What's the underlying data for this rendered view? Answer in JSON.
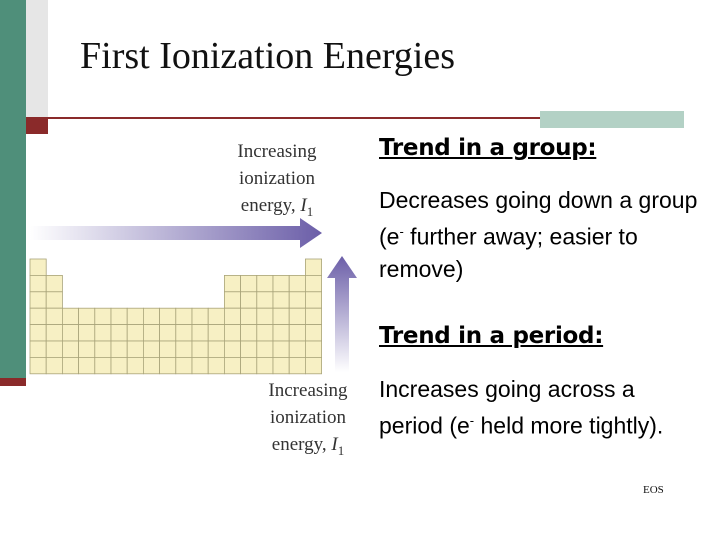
{
  "slide": {
    "title": "First Ionization Energies",
    "footer_tag": "EOS"
  },
  "figure": {
    "top_label": [
      "Increasing",
      "ionization",
      "energy,"
    ],
    "side_label": [
      "Increasing",
      "ionization",
      "energy,"
    ],
    "symbol": "I",
    "subscript": "1",
    "colors": {
      "cell_fill": "#f7f0c4",
      "cell_stroke": "#a9a47a",
      "arrow": "#6b5ea8"
    }
  },
  "content": {
    "group_heading": "Trend in a group:",
    "group_text_1": "Decreases going down a group (e",
    "group_sup": "-",
    "group_text_2": " further away; easier to remove)",
    "period_heading": "Trend in a period:",
    "period_text_1": "Increases going across a period (e",
    "period_sup": "-",
    "period_text_2": " held more tightly)."
  }
}
